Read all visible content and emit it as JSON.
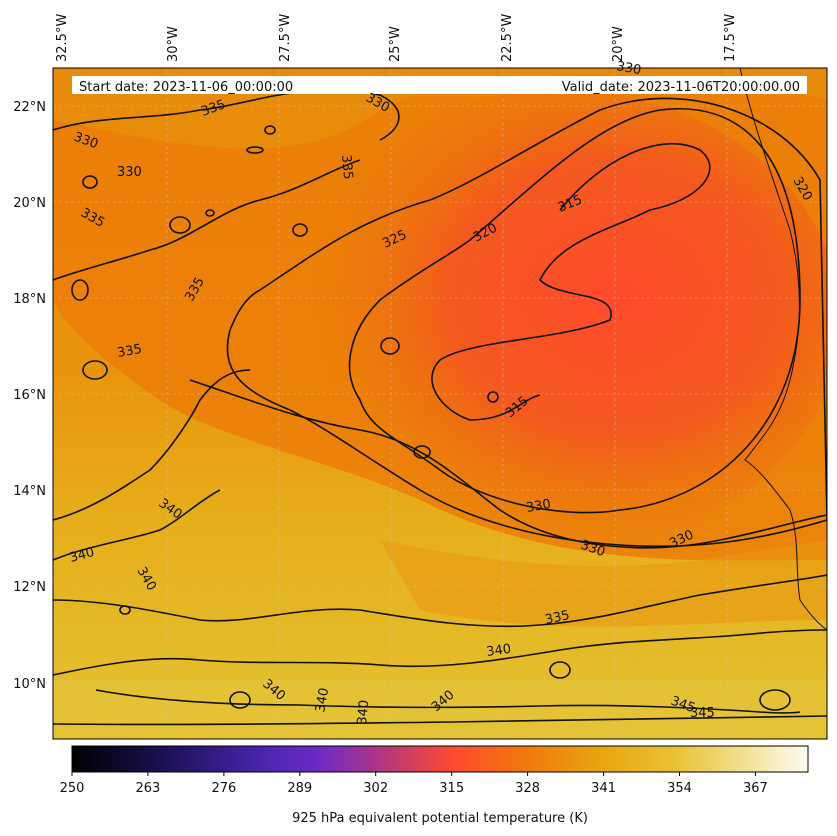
{
  "header": {
    "start_date": "Start date: 2023-11-06_00:00:00",
    "valid_date": "Valid_date: 2023-11-06T20:00:00.00"
  },
  "map": {
    "lon_labels": [
      "32.5°W",
      "30°W",
      "27.5°W",
      "25°W",
      "22.5°W",
      "20°W",
      "17.5°W"
    ],
    "lat_labels": [
      "22°N",
      "20°N",
      "18°N",
      "16°N",
      "14°N",
      "12°N",
      "10°N"
    ],
    "contour_labels": [
      "335",
      "330",
      "330",
      "330",
      "335",
      "335",
      "335",
      "325",
      "320",
      "315",
      "320",
      "330",
      "315",
      "335",
      "340",
      "340",
      "340",
      "330",
      "330",
      "330",
      "335",
      "340",
      "340",
      "340",
      "340",
      "340",
      "345",
      "345"
    ]
  },
  "colorbar": {
    "ticks": [
      "250",
      "263",
      "276",
      "289",
      "302",
      "315",
      "328",
      "341",
      "354",
      "367"
    ],
    "label": "925 hPa equivalent potential temperature (K)",
    "colors": [
      "#000000",
      "#1a0f4a",
      "#5a27c8",
      "#a6368a",
      "#ff4b2e",
      "#f08a00",
      "#e8b41a",
      "#efd25a",
      "#fbfbe8"
    ]
  }
}
